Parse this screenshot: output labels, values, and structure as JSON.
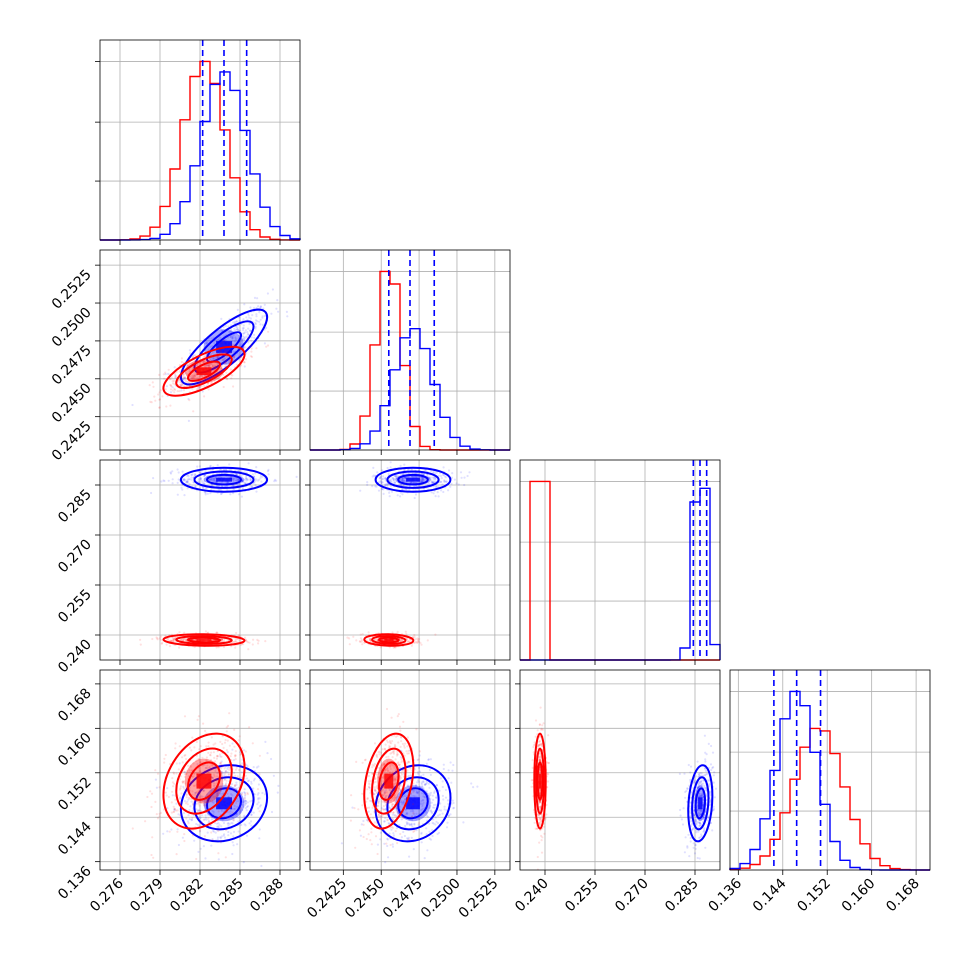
{
  "colors": {
    "red_sample": "#ff0000",
    "blue_sample": "#0000ff",
    "grid": "#b0b0b0"
  },
  "chart_data": {
    "type": "corner",
    "grid": true,
    "params": [
      {
        "lim": [
          0.2745,
          0.2895
        ],
        "ticks": [
          0.276,
          0.279,
          0.282,
          0.285,
          0.288
        ],
        "tick_labels": [
          "0.276",
          "0.279",
          "0.282",
          "0.285",
          "0.288"
        ]
      },
      {
        "lim": [
          0.2403,
          0.2535
        ],
        "ticks": [
          0.2425,
          0.245,
          0.2475,
          0.25,
          0.2525
        ],
        "tick_labels": [
          "0.2425",
          "0.2450",
          "0.2475",
          "0.2500",
          "0.2525"
        ]
      },
      {
        "lim": [
          0.2325,
          0.2925
        ],
        "ticks": [
          0.24,
          0.255,
          0.27,
          0.285
        ],
        "tick_labels": [
          "0.240",
          "0.255",
          "0.270",
          "0.285"
        ]
      },
      {
        "lim": [
          0.1345,
          0.1705
        ],
        "ticks": [
          0.136,
          0.144,
          0.152,
          0.16,
          0.168
        ],
        "tick_labels": [
          "0.136",
          "0.144",
          "0.152",
          "0.160",
          "0.168"
        ]
      }
    ],
    "series": [
      {
        "color": "#ff0000",
        "means": [
          0.2823,
          0.2455,
          0.2385,
          0.1505
        ],
        "sds": [
          0.0016,
          0.00085,
          0.0009,
          0.0045
        ],
        "corr": [
          [
            1,
            0.7,
            -0.1,
            0.3
          ],
          [
            0.7,
            1,
            -0.1,
            0.3
          ],
          [
            -0.1,
            -0.1,
            1,
            0
          ],
          [
            0.3,
            0.3,
            0,
            1
          ]
        ]
      },
      {
        "color": "#0000ff",
        "means": [
          0.2838,
          0.2471,
          0.2866,
          0.1465
        ],
        "sds": [
          0.0017,
          0.0013,
          0.0019,
          0.0036
        ],
        "corr": [
          [
            1,
            0.8,
            0,
            0.15
          ],
          [
            0.8,
            1,
            0,
            0.15
          ],
          [
            0,
            0,
            1,
            0.2
          ],
          [
            0.15,
            0.15,
            0.2,
            1
          ]
        ]
      }
    ],
    "quantile_lines": [
      [
        0.2822,
        0.2838,
        0.2855
      ],
      [
        0.2455,
        0.2469,
        0.2485
      ],
      [
        0.2845,
        0.2865,
        0.2885
      ],
      [
        0.1424,
        0.1465,
        0.1508
      ]
    ],
    "quantile_color": "#0000ff"
  }
}
